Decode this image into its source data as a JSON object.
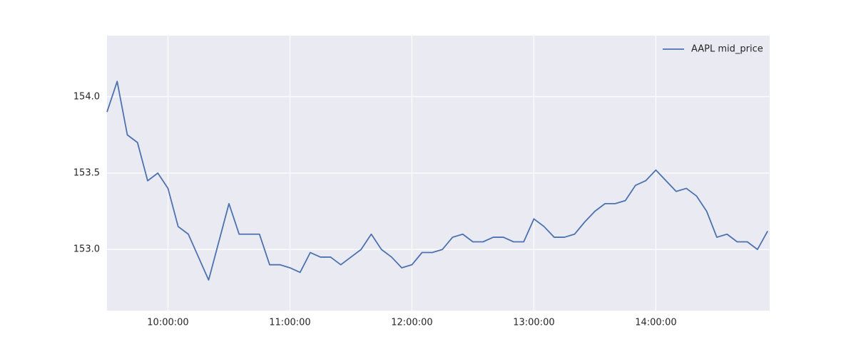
{
  "chart_data": {
    "type": "line",
    "x": [
      "09:30:00",
      "09:35:00",
      "09:40:00",
      "09:45:00",
      "09:50:00",
      "09:55:00",
      "10:00:00",
      "10:05:00",
      "10:10:00",
      "10:15:00",
      "10:20:00",
      "10:25:00",
      "10:30:00",
      "10:35:00",
      "10:40:00",
      "10:45:00",
      "10:50:00",
      "10:55:00",
      "11:00:00",
      "11:05:00",
      "11:10:00",
      "11:15:00",
      "11:20:00",
      "11:25:00",
      "11:30:00",
      "11:35:00",
      "11:40:00",
      "11:45:00",
      "11:50:00",
      "11:55:00",
      "12:00:00",
      "12:05:00",
      "12:10:00",
      "12:15:00",
      "12:20:00",
      "12:25:00",
      "12:30:00",
      "12:35:00",
      "12:40:00",
      "12:45:00",
      "12:50:00",
      "12:55:00",
      "13:00:00",
      "13:05:00",
      "13:10:00",
      "13:15:00",
      "13:20:00",
      "13:25:00",
      "13:30:00",
      "13:35:00",
      "13:40:00",
      "13:45:00",
      "13:50:00",
      "13:55:00",
      "14:00:00",
      "14:05:00",
      "14:10:00",
      "14:15:00",
      "14:20:00",
      "14:25:00",
      "14:30:00",
      "14:35:00",
      "14:40:00",
      "14:45:00",
      "14:50:00",
      "14:55:00"
    ],
    "series": [
      {
        "name": "AAPL mid_price",
        "color": "#4c72b0",
        "values": [
          153.9,
          154.1,
          153.75,
          153.7,
          153.45,
          153.5,
          153.4,
          153.15,
          153.1,
          152.95,
          152.8,
          153.05,
          153.3,
          153.1,
          153.1,
          153.1,
          152.9,
          152.9,
          152.88,
          152.85,
          152.98,
          152.95,
          152.95,
          152.9,
          152.95,
          153.0,
          153.1,
          153.0,
          152.95,
          152.88,
          152.9,
          152.98,
          152.98,
          153.0,
          153.08,
          153.1,
          153.05,
          153.05,
          153.08,
          153.08,
          153.05,
          153.05,
          153.2,
          153.15,
          153.08,
          153.08,
          153.1,
          153.18,
          153.25,
          153.3,
          153.3,
          153.32,
          153.42,
          153.45,
          153.52,
          153.45,
          153.38,
          153.4,
          153.35,
          153.25,
          153.08,
          153.1,
          153.05,
          153.05,
          153.0,
          153.12
        ]
      }
    ],
    "xlim": [
      "09:30:00",
      "14:56:00"
    ],
    "xticks": [
      "10:00:00",
      "11:00:00",
      "12:00:00",
      "13:00:00",
      "14:00:00"
    ],
    "ylim": [
      152.6,
      154.4
    ],
    "yticks": [
      {
        "value": 153,
        "label": "153.0"
      },
      {
        "value": 153.5,
        "label": "153.5"
      },
      {
        "value": 154,
        "label": "154.0"
      }
    ],
    "grid": true,
    "legend": "upper right"
  }
}
